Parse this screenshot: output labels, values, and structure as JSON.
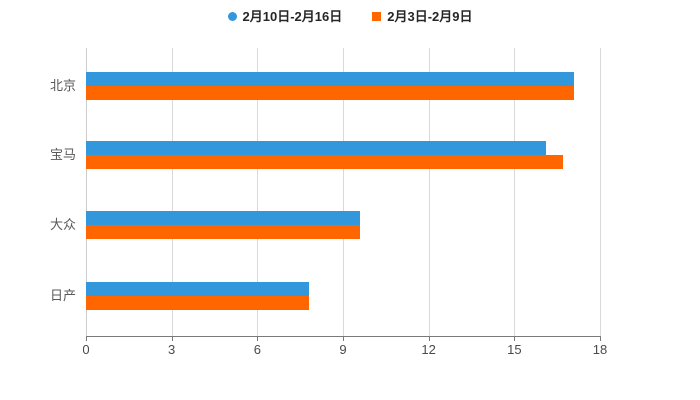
{
  "legend": {
    "items": [
      {
        "label": "2月10日-2月16日",
        "marker": "circle",
        "color": "#3398DB"
      },
      {
        "label": "2月3日-2月9日",
        "marker": "square",
        "color": "#FF6600"
      }
    ]
  },
  "chart_data": {
    "type": "bar",
    "orientation": "horizontal",
    "title": "",
    "xlabel": "",
    "ylabel": "",
    "categories": [
      "北京",
      "宝马",
      "大众",
      "日产"
    ],
    "series": [
      {
        "name": "2月10日-2月16日",
        "color": "#3398DB",
        "values": [
          17.1,
          16.1,
          9.6,
          7.8
        ]
      },
      {
        "name": "2月3日-2月9日",
        "color": "#FF6600",
        "values": [
          17.1,
          16.7,
          9.6,
          7.8
        ]
      }
    ],
    "xticks": [
      "0",
      "3",
      "6",
      "9",
      "12",
      "15",
      "18"
    ],
    "xlim": [
      0,
      18
    ],
    "grid": true,
    "legend_position": "top",
    "colors": {
      "gridline": "#d9d9d9",
      "y_axis_line": "#cccccc",
      "x_axis_line": "#7a7a7a",
      "tick_label": "#4a4a4a",
      "category_label": "#595959",
      "legend_text": "#262626",
      "background": "#ffffff"
    }
  }
}
